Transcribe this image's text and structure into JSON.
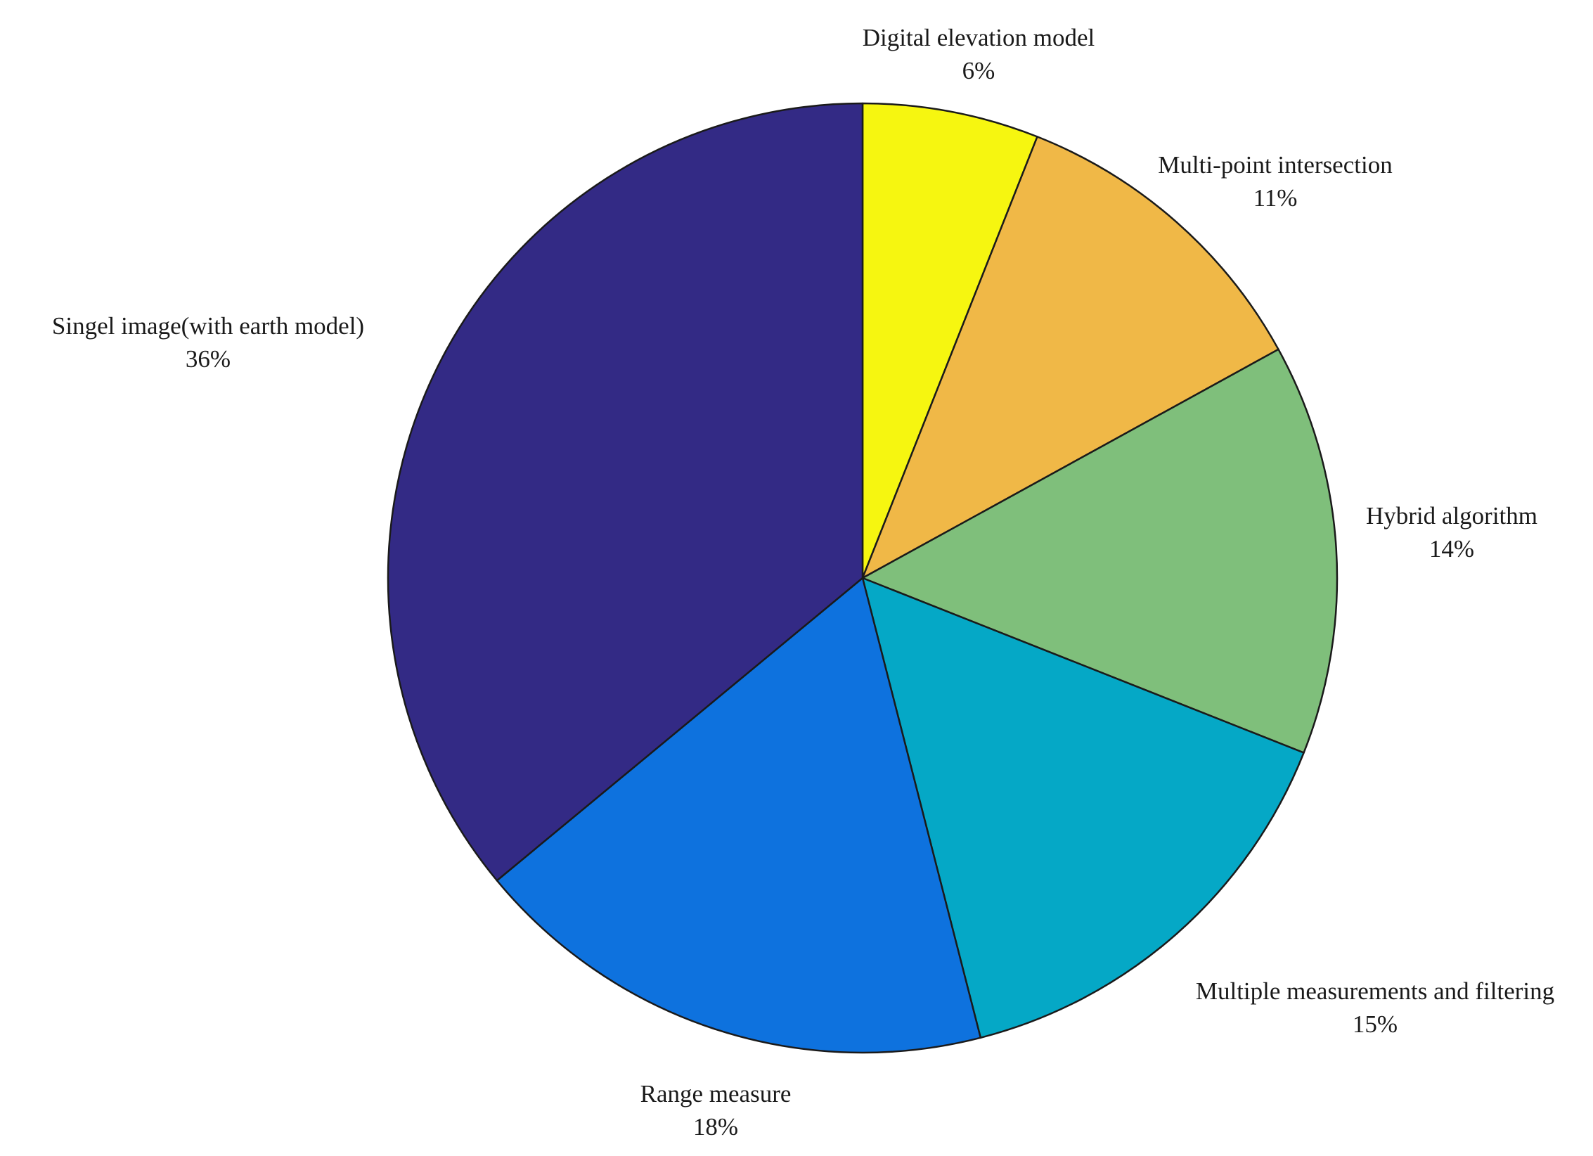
{
  "chart_data": {
    "type": "pie",
    "title": "",
    "slices": [
      {
        "label": "Digital elevation model",
        "value": 6,
        "value_label": "6%",
        "color": "#f6f610"
      },
      {
        "label": "Multi-point intersection",
        "value": 11,
        "value_label": "11%",
        "color": "#f0b847"
      },
      {
        "label": "Hybrid algorithm",
        "value": 14,
        "value_label": "14%",
        "color": "#7fbf7b"
      },
      {
        "label": "Multiple measurements and filtering",
        "value": 15,
        "value_label": "15%",
        "color": "#05a8c6"
      },
      {
        "label": "Range measure",
        "value": 18,
        "value_label": "18%",
        "color": "#0e72de"
      },
      {
        "label": "Singel image(with earth model)",
        "value": 36,
        "value_label": "36%",
        "color": "#332a85"
      }
    ],
    "start_angle_deg": 0,
    "direction": "clockwise"
  }
}
